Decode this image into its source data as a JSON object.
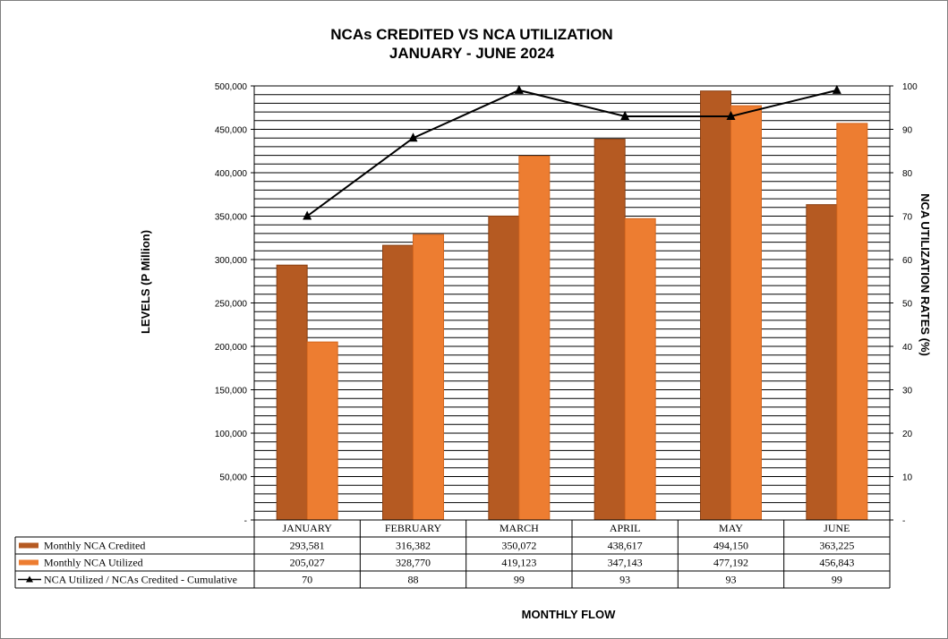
{
  "chart_data": {
    "type": "bar",
    "title": "NCAs CREDITED VS NCA UTILIZATION",
    "subtitle": "JANUARY - JUNE 2024",
    "xlabel": "MONTHLY FLOW",
    "ylabel": "LEVELS (P Million)",
    "y2label": "NCA UTILIZATION RATES (%)",
    "categories": [
      "JANUARY",
      "FEBRUARY",
      "MARCH",
      "APRIL",
      "MAY",
      "JUNE"
    ],
    "ylim": [
      0,
      500000
    ],
    "y2lim": [
      0,
      100
    ],
    "yticks": [
      "-",
      "50,000",
      "100,000",
      "150,000",
      "200,000",
      "250,000",
      "300,000",
      "350,000",
      "400,000",
      "450,000",
      "500,000"
    ],
    "y2ticks": [
      "-",
      "10",
      "20",
      "30",
      "40",
      "50",
      "60",
      "70",
      "80",
      "90",
      "100"
    ],
    "grid": true,
    "legend": "data-table",
    "series": [
      {
        "name": "Monthly NCA Credited",
        "kind": "bar",
        "color": "#b55a22",
        "values": [
          293581,
          316382,
          350072,
          438617,
          494150,
          363225
        ],
        "labels": [
          "293,581",
          "316,382",
          "350,072",
          "438,617",
          "494,150",
          "363,225"
        ]
      },
      {
        "name": "Monthly NCA Utilized",
        "kind": "bar",
        "color": "#ed7d31",
        "values": [
          205027,
          328770,
          419123,
          347143,
          477192,
          456843
        ],
        "labels": [
          "205,027",
          "328,770",
          "419,123",
          "347,143",
          "477,192",
          "456,843"
        ]
      },
      {
        "name": "NCA Utilized / NCAs Credited - Cumulative",
        "kind": "line",
        "axis": "secondary",
        "color": "#000000",
        "values": [
          70,
          88,
          99,
          93,
          93,
          99
        ],
        "labels": [
          "70",
          "88",
          "99",
          "93",
          "93",
          "99"
        ]
      }
    ]
  }
}
